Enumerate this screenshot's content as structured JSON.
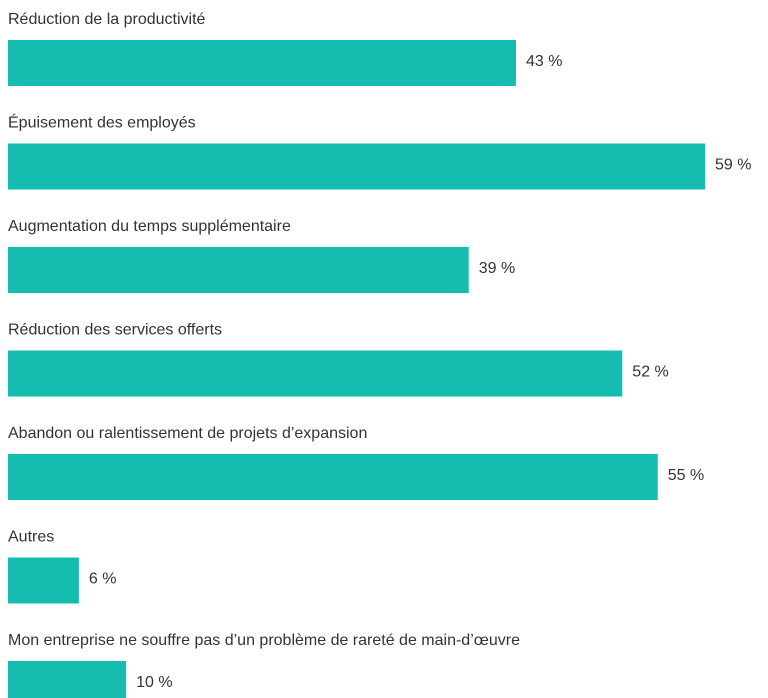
{
  "chart_data": {
    "type": "bar",
    "orientation": "horizontal",
    "categories": [
      "Réduction de la productivité",
      "Épuisement des employés",
      "Augmentation du temps supplémentaire",
      "Réduction des services offerts",
      "Abandon ou ralentissement de projets d’expansion",
      "Autres",
      "Mon entreprise ne souffre pas d’un problème de rareté de main-d’œuvre"
    ],
    "values": [
      43,
      59,
      39,
      52,
      55,
      6,
      10
    ],
    "value_labels": [
      "43 %",
      "59 %",
      "39 %",
      "52 %",
      "55 %",
      "6 %",
      "10 %"
    ],
    "color": "#14bdb0"
  }
}
